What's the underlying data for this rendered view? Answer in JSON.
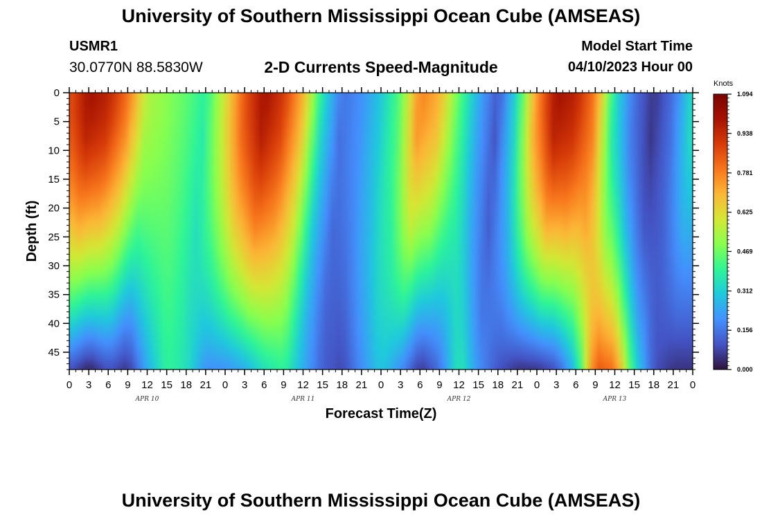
{
  "header": {
    "main_title": "University of Southern Mississippi Ocean Cube (AMSEAS)",
    "station_id": "USMR1",
    "station_coords": "30.0770N  88.5830W",
    "plot_title": "2-D Currents Speed-Magnitude",
    "start_label": "Model Start Time",
    "start_value": "04/10/2023 Hour 00"
  },
  "footer": {
    "repeated_title": "University of Southern Mississippi Ocean Cube (AMSEAS)"
  },
  "chart_data": {
    "type": "heatmap",
    "title": "2-D Currents Speed-Magnitude",
    "xlabel": "Forecast Time(Z)",
    "ylabel": "Depth (ft)",
    "x_unit": "forecast hour",
    "xlim": [
      0,
      96
    ],
    "ylim": [
      0,
      48
    ],
    "y_inverted": true,
    "x_tick_values": [
      0,
      3,
      6,
      9,
      12,
      15,
      18,
      21,
      24,
      27,
      30,
      33,
      36,
      39,
      42,
      45,
      48,
      51,
      54,
      57,
      60,
      63,
      66,
      69,
      72,
      75,
      78,
      81,
      84,
      87,
      90,
      93,
      96
    ],
    "x_tick_labels": [
      "0",
      "3",
      "6",
      "9",
      "12",
      "15",
      "18",
      "21",
      "0",
      "3",
      "6",
      "9",
      "12",
      "15",
      "18",
      "21",
      "0",
      "3",
      "6",
      "9",
      "12",
      "15",
      "18",
      "21",
      "0",
      "3",
      "6",
      "9",
      "12",
      "15",
      "18",
      "21",
      "0"
    ],
    "date_labels": [
      {
        "hour": 12,
        "label": "APR 10"
      },
      {
        "hour": 36,
        "label": "APR 11"
      },
      {
        "hour": 60,
        "label": "APR 12"
      },
      {
        "hour": 84,
        "label": "APR 13"
      }
    ],
    "y_tick_values": [
      0,
      5,
      10,
      15,
      20,
      25,
      30,
      35,
      40,
      45
    ],
    "y_tick_labels": [
      "0",
      "5",
      "10",
      "15",
      "20",
      "25",
      "30",
      "35",
      "40",
      "45"
    ],
    "colorbar": {
      "unit": "Knots",
      "min": 0.0,
      "max": 1.094,
      "tick_labels": [
        "1.094",
        "0.938",
        "0.781",
        "0.625",
        "0.469",
        "0.312",
        "0.156",
        "0.000"
      ],
      "tick_values": [
        1.094,
        0.938,
        0.781,
        0.625,
        0.469,
        0.312,
        0.156,
        0.0
      ]
    },
    "colormap": [
      "#30123b",
      "#4454c4",
      "#4490fe",
      "#1fc9dd",
      "#2ef597",
      "#88ff4e",
      "#d4e735",
      "#fcb737",
      "#f8761c",
      "#d73c09",
      "#a61202",
      "#7a0403"
    ],
    "surface_speed_knots": [
      {
        "hour": 0,
        "value": 0.85
      },
      {
        "hour": 3,
        "value": 1.0
      },
      {
        "hour": 6,
        "value": 0.95
      },
      {
        "hour": 9,
        "value": 0.8
      },
      {
        "hour": 12,
        "value": 0.55
      },
      {
        "hour": 15,
        "value": 0.5
      },
      {
        "hour": 18,
        "value": 0.45
      },
      {
        "hour": 21,
        "value": 0.38
      },
      {
        "hour": 24,
        "value": 0.6
      },
      {
        "hour": 27,
        "value": 0.85
      },
      {
        "hour": 30,
        "value": 1.0
      },
      {
        "hour": 33,
        "value": 0.9
      },
      {
        "hour": 36,
        "value": 0.7
      },
      {
        "hour": 39,
        "value": 0.35
      },
      {
        "hour": 42,
        "value": 0.15
      },
      {
        "hour": 45,
        "value": 0.2
      },
      {
        "hour": 48,
        "value": 0.3
      },
      {
        "hour": 51,
        "value": 0.45
      },
      {
        "hour": 54,
        "value": 0.78
      },
      {
        "hour": 57,
        "value": 0.7
      },
      {
        "hour": 60,
        "value": 0.45
      },
      {
        "hour": 63,
        "value": 0.25
      },
      {
        "hour": 66,
        "value": 0.1
      },
      {
        "hour": 69,
        "value": 0.35
      },
      {
        "hour": 72,
        "value": 0.75
      },
      {
        "hour": 75,
        "value": 1.0
      },
      {
        "hour": 78,
        "value": 0.95
      },
      {
        "hour": 81,
        "value": 0.78
      },
      {
        "hour": 84,
        "value": 0.35
      },
      {
        "hour": 87,
        "value": 0.15
      },
      {
        "hour": 90,
        "value": 0.05
      },
      {
        "hour": 93,
        "value": 0.15
      },
      {
        "hour": 96,
        "value": 0.35
      }
    ],
    "bottom_speed_knots": [
      {
        "hour": 0,
        "value": 0.1
      },
      {
        "hour": 3,
        "value": 0.02
      },
      {
        "hour": 6,
        "value": 0.1
      },
      {
        "hour": 9,
        "value": 0.05
      },
      {
        "hour": 12,
        "value": 0.25
      },
      {
        "hour": 15,
        "value": 0.4
      },
      {
        "hour": 18,
        "value": 0.35
      },
      {
        "hour": 21,
        "value": 0.2
      },
      {
        "hour": 24,
        "value": 0.2
      },
      {
        "hour": 27,
        "value": 0.25
      },
      {
        "hour": 30,
        "value": 0.35
      },
      {
        "hour": 33,
        "value": 0.4
      },
      {
        "hour": 36,
        "value": 0.25
      },
      {
        "hour": 39,
        "value": 0.12
      },
      {
        "hour": 42,
        "value": 0.08
      },
      {
        "hour": 45,
        "value": 0.2
      },
      {
        "hour": 48,
        "value": 0.3
      },
      {
        "hour": 51,
        "value": 0.2
      },
      {
        "hour": 54,
        "value": 0.05
      },
      {
        "hour": 57,
        "value": 0.15
      },
      {
        "hour": 60,
        "value": 0.38
      },
      {
        "hour": 63,
        "value": 0.2
      },
      {
        "hour": 66,
        "value": 0.1
      },
      {
        "hour": 69,
        "value": 0.05
      },
      {
        "hour": 72,
        "value": 0.05
      },
      {
        "hour": 75,
        "value": 0.1
      },
      {
        "hour": 78,
        "value": 0.3
      },
      {
        "hour": 81,
        "value": 0.85
      },
      {
        "hour": 84,
        "value": 0.8
      },
      {
        "hour": 87,
        "value": 0.35
      },
      {
        "hour": 90,
        "value": 0.1
      },
      {
        "hour": 93,
        "value": 0.05
      },
      {
        "hour": 96,
        "value": 0.05
      }
    ]
  }
}
